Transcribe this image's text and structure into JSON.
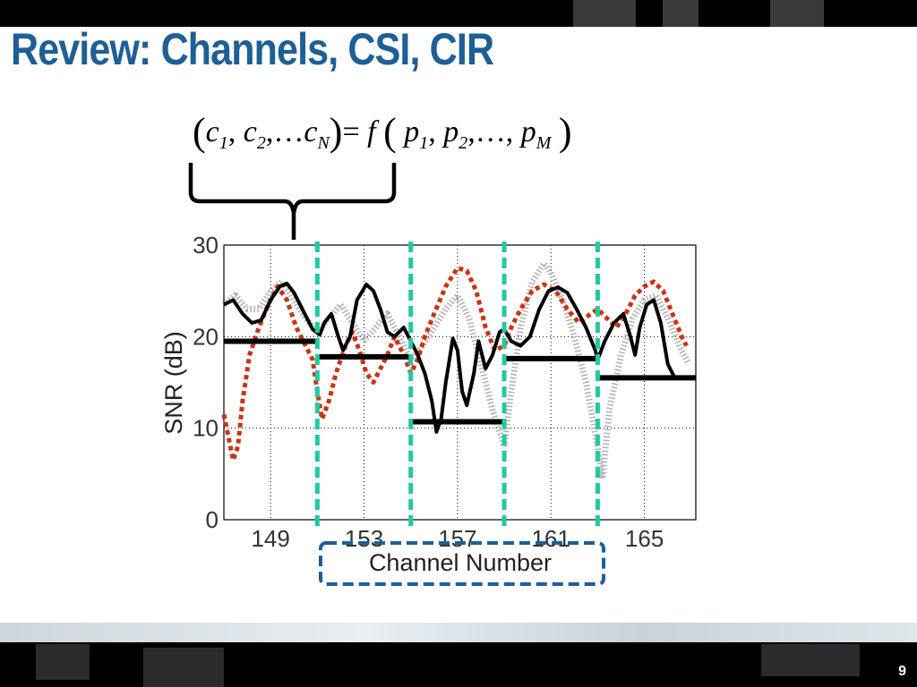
{
  "slide": {
    "title": "Review: Channels, CSI, CIR",
    "page_number": "9"
  },
  "formula": {
    "lhs_vars": [
      "c",
      "c",
      "c"
    ],
    "lhs_subs": [
      "1",
      "2",
      "N"
    ],
    "func": "f",
    "rhs_vars": [
      "p",
      "p",
      "p"
    ],
    "rhs_subs": [
      "1",
      "2",
      "M"
    ],
    "ellipsis": "…",
    "equals": "="
  },
  "colors": {
    "title": "#1e5f97",
    "black_series": "#000000",
    "red_series": "#cc3311",
    "gray_series": "#b0b0b0",
    "channel_divider": "#22c9a0",
    "label_box_border": "#1e5f97"
  },
  "chart_data": {
    "type": "line",
    "xlabel": "Channel Number",
    "ylabel": "SNR (dB)",
    "ylim": [
      0,
      30
    ],
    "xlim": [
      147,
      167.2
    ],
    "yticks": [
      "0",
      "10",
      "20",
      "30"
    ],
    "xticks": [
      "149",
      "153",
      "157",
      "161",
      "165"
    ],
    "xtick_values": [
      149,
      153,
      157,
      161,
      165
    ],
    "grid": true,
    "channel_boundaries": [
      151,
      155,
      159,
      163
    ],
    "series": [
      {
        "style": "solid-black",
        "values": [
          [
            147,
            23.5
          ],
          [
            147.4,
            24
          ],
          [
            147.8,
            22.5
          ],
          [
            148.2,
            21.5
          ],
          [
            148.6,
            21.8
          ],
          [
            149,
            24
          ],
          [
            149.4,
            25.5
          ],
          [
            149.7,
            25.8
          ],
          [
            150,
            24.8
          ],
          [
            150.4,
            22.8
          ],
          [
            150.8,
            20.8
          ],
          [
            151.1,
            20.2
          ],
          [
            151.3,
            21.5
          ],
          [
            151.6,
            22.5
          ],
          [
            151.9,
            20
          ],
          [
            152.1,
            18.5
          ],
          [
            152.4,
            20
          ],
          [
            152.7,
            24
          ],
          [
            153.1,
            25.7
          ],
          [
            153.4,
            25
          ],
          [
            153.7,
            23
          ],
          [
            154,
            20.5
          ],
          [
            154.3,
            20
          ],
          [
            154.7,
            21
          ],
          [
            155,
            19.5
          ],
          [
            155.3,
            18
          ],
          [
            155.6,
            16
          ],
          [
            155.9,
            13
          ],
          [
            156.1,
            9.6
          ],
          [
            156.3,
            11
          ],
          [
            156.5,
            15
          ],
          [
            156.8,
            19.8
          ],
          [
            157,
            18.5
          ],
          [
            157.2,
            14
          ],
          [
            157.4,
            12.5
          ],
          [
            157.7,
            16
          ],
          [
            157.9,
            19.5
          ],
          [
            158.2,
            16.5
          ],
          [
            158.5,
            18
          ],
          [
            158.8,
            20.5
          ],
          [
            159,
            20.8
          ],
          [
            159.3,
            19.5
          ],
          [
            159.7,
            19
          ],
          [
            160.1,
            20
          ],
          [
            160.5,
            23
          ],
          [
            160.9,
            25
          ],
          [
            161.3,
            25.4
          ],
          [
            161.7,
            24.8
          ],
          [
            162.1,
            23
          ],
          [
            162.5,
            21
          ],
          [
            162.9,
            18.5
          ],
          [
            163,
            17.5
          ],
          [
            163.3,
            19.5
          ],
          [
            163.7,
            21.5
          ],
          [
            164.1,
            22.5
          ],
          [
            164.4,
            20
          ],
          [
            164.6,
            18
          ],
          [
            164.8,
            21
          ],
          [
            165.1,
            23.5
          ],
          [
            165.4,
            24
          ],
          [
            165.7,
            21.5
          ],
          [
            166,
            17
          ],
          [
            166.3,
            15.5
          ]
        ]
      },
      {
        "style": "dotted-red",
        "values": [
          [
            147,
            11.5
          ],
          [
            147.2,
            9
          ],
          [
            147.4,
            6.5
          ],
          [
            147.6,
            8
          ],
          [
            147.8,
            13
          ],
          [
            148.1,
            18
          ],
          [
            148.5,
            21
          ],
          [
            148.9,
            23.5
          ],
          [
            149.3,
            25.5
          ],
          [
            149.7,
            24
          ],
          [
            150.1,
            21
          ],
          [
            150.5,
            19
          ],
          [
            150.8,
            17.5
          ],
          [
            151,
            14
          ],
          [
            151.2,
            11
          ],
          [
            151.5,
            13
          ],
          [
            151.8,
            16
          ],
          [
            152.2,
            19
          ],
          [
            152.5,
            20.5
          ],
          [
            152.8,
            18.5
          ],
          [
            153.1,
            16
          ],
          [
            153.4,
            15
          ],
          [
            153.7,
            16.5
          ],
          [
            154,
            18
          ],
          [
            154.3,
            20
          ],
          [
            154.7,
            18
          ],
          [
            155,
            16
          ],
          [
            155.3,
            17.5
          ],
          [
            155.6,
            20
          ],
          [
            156,
            22.5
          ],
          [
            156.5,
            25.5
          ],
          [
            157,
            27.5
          ],
          [
            157.4,
            27.2
          ],
          [
            157.8,
            25
          ],
          [
            158.2,
            21
          ],
          [
            158.6,
            18.5
          ],
          [
            159,
            19
          ],
          [
            159.3,
            21
          ],
          [
            159.7,
            23
          ],
          [
            160.2,
            25
          ],
          [
            160.7,
            25.7
          ],
          [
            161.2,
            25
          ],
          [
            161.7,
            23
          ],
          [
            162.2,
            21.5
          ],
          [
            162.7,
            22.5
          ],
          [
            163,
            23
          ],
          [
            163.4,
            22
          ],
          [
            163.8,
            21
          ],
          [
            164.2,
            22.5
          ],
          [
            164.6,
            24.5
          ],
          [
            165,
            25.5
          ],
          [
            165.4,
            26
          ],
          [
            165.8,
            25
          ],
          [
            166.2,
            22.5
          ],
          [
            166.6,
            20
          ],
          [
            166.8,
            19
          ]
        ]
      },
      {
        "style": "hatched-gray",
        "values": [
          [
            147,
            23.5
          ],
          [
            147.5,
            24.5
          ],
          [
            148,
            23
          ],
          [
            148.5,
            23
          ],
          [
            149,
            25
          ],
          [
            149.5,
            26
          ],
          [
            150,
            24
          ],
          [
            150.5,
            22
          ],
          [
            151,
            20.5
          ],
          [
            151.5,
            22
          ],
          [
            152,
            23.5
          ],
          [
            152.5,
            21.5
          ],
          [
            153,
            19.5
          ],
          [
            153.5,
            21
          ],
          [
            154,
            22.5
          ],
          [
            154.5,
            20
          ],
          [
            155,
            17.5
          ],
          [
            155.5,
            19
          ],
          [
            156,
            21
          ],
          [
            156.5,
            23
          ],
          [
            157,
            24.5
          ],
          [
            157.5,
            22
          ],
          [
            158,
            17
          ],
          [
            158.5,
            12
          ],
          [
            159,
            8
          ],
          [
            159.3,
            14
          ],
          [
            159.7,
            21
          ],
          [
            160.2,
            26
          ],
          [
            160.7,
            28
          ],
          [
            161,
            27
          ],
          [
            161.5,
            24
          ],
          [
            162,
            20
          ],
          [
            162.5,
            15
          ],
          [
            163,
            8
          ],
          [
            163.2,
            4.5
          ],
          [
            163.5,
            12
          ],
          [
            164,
            18
          ],
          [
            164.5,
            22
          ],
          [
            165,
            24
          ],
          [
            165.5,
            24.5
          ],
          [
            166,
            22
          ],
          [
            166.5,
            19
          ],
          [
            166.9,
            17
          ]
        ]
      }
    ],
    "channel_averages": [
      {
        "x": [
          147,
          151
        ],
        "y": 19.5
      },
      {
        "x": [
          151,
          155
        ],
        "y": 17.8
      },
      {
        "x": [
          155,
          159
        ],
        "y": 10.7
      },
      {
        "x": [
          159,
          163
        ],
        "y": 17.6
      },
      {
        "x": [
          163,
          167.2
        ],
        "y": 15.5
      }
    ]
  }
}
